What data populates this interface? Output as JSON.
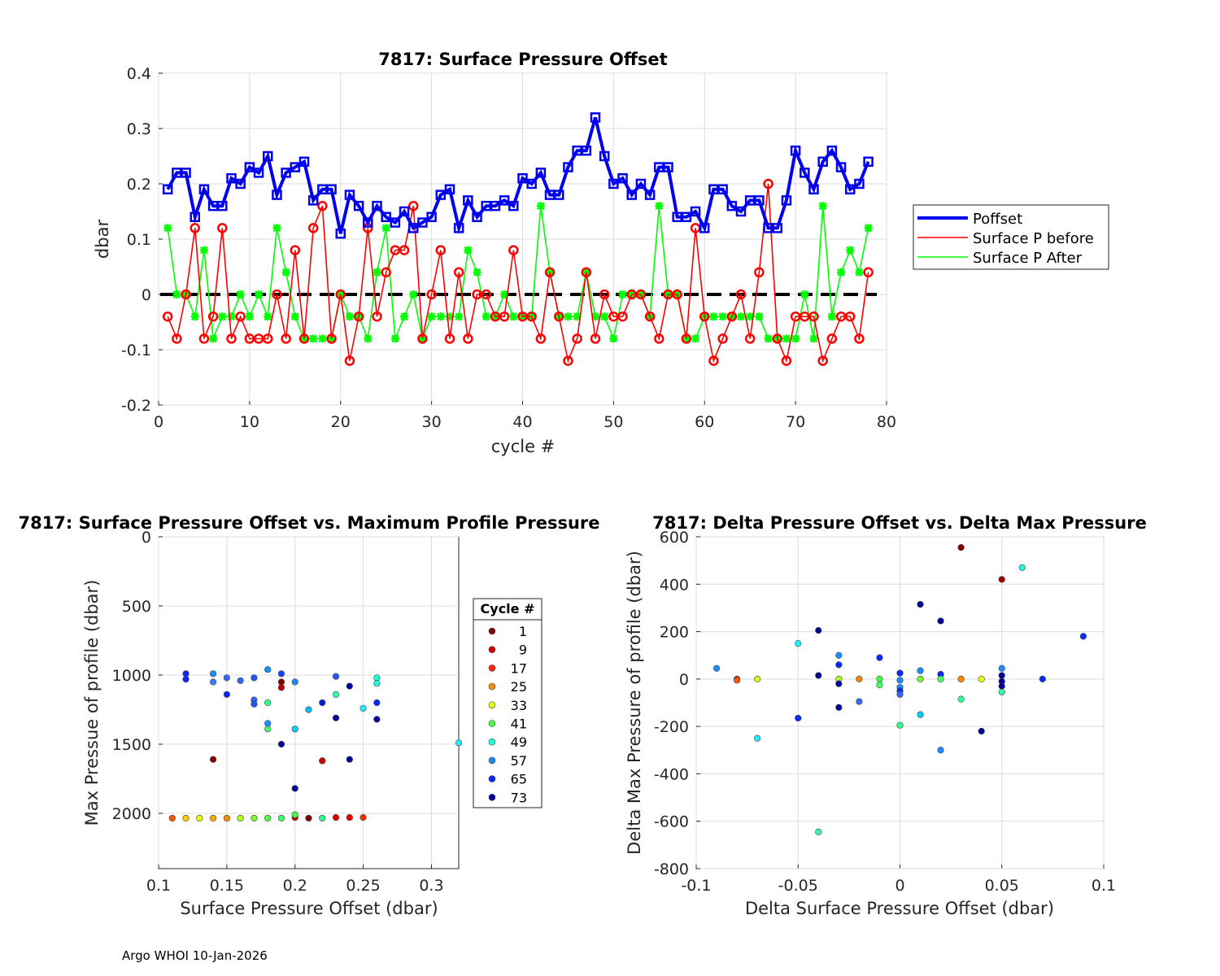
{
  "footer": "Argo WHOI 10-Jan-2026",
  "chart_data": [
    {
      "type": "line",
      "title": "7817: Surface Pressure Offset",
      "xlabel": "cycle #",
      "ylabel": "dbar",
      "xlim": [
        0,
        80
      ],
      "ylim": [
        -0.2,
        0.4
      ],
      "xticks": [
        0,
        10,
        20,
        30,
        40,
        50,
        60,
        70,
        80
      ],
      "yticks": [
        -0.2,
        -0.1,
        0,
        0.1,
        0.2,
        0.3,
        0.4
      ],
      "xtick_labels": [
        "0",
        "10",
        "20",
        "30",
        "40",
        "50",
        "60",
        "70",
        "80"
      ],
      "ytick_labels": [
        "-0.2",
        "-0.1",
        "0",
        "0.1",
        "0.2",
        "0.3",
        "0.4"
      ],
      "grid": true,
      "legend_position": "right-outside",
      "zero_line": 0,
      "x": [
        1,
        2,
        3,
        4,
        5,
        6,
        7,
        8,
        9,
        10,
        11,
        12,
        13,
        14,
        15,
        16,
        17,
        18,
        19,
        20,
        21,
        22,
        23,
        24,
        25,
        26,
        27,
        28,
        29,
        30,
        31,
        32,
        33,
        34,
        35,
        36,
        37,
        38,
        39,
        40,
        41,
        42,
        43,
        44,
        45,
        46,
        47,
        48,
        49,
        50,
        51,
        52,
        53,
        54,
        55,
        56,
        57,
        58,
        59,
        60,
        61,
        62,
        63,
        64,
        65,
        66,
        67,
        68,
        69,
        70,
        71,
        72,
        73,
        74,
        75,
        76,
        77,
        78
      ],
      "series": [
        {
          "name": "Poffset",
          "color": "#0000ee",
          "values": [
            0.19,
            0.22,
            0.22,
            0.14,
            0.19,
            0.16,
            0.16,
            0.21,
            0.2,
            0.23,
            0.22,
            0.25,
            0.18,
            0.22,
            0.23,
            0.24,
            0.17,
            0.19,
            0.19,
            0.11,
            0.18,
            0.16,
            0.13,
            0.16,
            0.14,
            0.13,
            0.15,
            0.12,
            0.13,
            0.14,
            0.18,
            0.19,
            0.12,
            0.17,
            0.14,
            0.16,
            0.16,
            0.17,
            0.16,
            0.21,
            0.2,
            0.22,
            0.18,
            0.18,
            0.23,
            0.26,
            0.26,
            0.32,
            0.25,
            0.2,
            0.21,
            0.18,
            0.2,
            0.18,
            0.23,
            0.23,
            0.14,
            0.14,
            0.15,
            0.12,
            0.19,
            0.19,
            0.16,
            0.15,
            0.17,
            0.17,
            0.12,
            0.12,
            0.17,
            0.26,
            0.22,
            0.19,
            0.24,
            0.26,
            0.23,
            0.19,
            0.2,
            0.24
          ]
        },
        {
          "name": "Surface P before",
          "color": "#ff0000",
          "values": [
            -0.04,
            -0.08,
            0,
            0.12,
            -0.08,
            -0.04,
            0.12,
            -0.08,
            -0.04,
            -0.08,
            -0.08,
            -0.08,
            0,
            -0.08,
            0.08,
            -0.08,
            0.12,
            0.16,
            -0.08,
            0,
            -0.12,
            -0.04,
            0.12,
            -0.04,
            0.04,
            0.08,
            0.08,
            0.16,
            -0.08,
            0,
            0.08,
            -0.08,
            0.04,
            -0.08,
            0,
            0,
            -0.04,
            -0.04,
            0.08,
            -0.04,
            -0.04,
            -0.08,
            0.04,
            -0.04,
            -0.12,
            -0.08,
            0.04,
            -0.08,
            0,
            -0.04,
            -0.04,
            0,
            0,
            -0.04,
            -0.08,
            0,
            0,
            -0.08,
            0.12,
            -0.04,
            -0.12,
            -0.08,
            -0.04,
            0,
            -0.08,
            0.04,
            0.2,
            -0.08,
            -0.12,
            -0.04,
            -0.04,
            -0.04,
            -0.12,
            -0.08,
            -0.04,
            -0.04,
            -0.08,
            0.04
          ]
        },
        {
          "name": "Surface P After",
          "color": "#00ff00",
          "values": [
            0.12,
            0,
            0,
            -0.04,
            0.08,
            -0.08,
            -0.04,
            -0.04,
            0,
            -0.04,
            0,
            -0.04,
            0.12,
            0.04,
            -0.04,
            -0.08,
            -0.08,
            -0.08,
            -0.08,
            0,
            -0.04,
            -0.04,
            -0.08,
            0.04,
            0.12,
            -0.08,
            -0.04,
            0,
            -0.08,
            -0.04,
            -0.04,
            -0.04,
            -0.04,
            0.08,
            0.04,
            -0.04,
            -0.04,
            0,
            -0.04,
            -0.04,
            -0.04,
            0.16,
            0.04,
            -0.04,
            -0.04,
            -0.04,
            0.04,
            -0.04,
            -0.04,
            -0.08,
            0,
            0,
            0,
            -0.04,
            0.16,
            0,
            0,
            -0.08,
            -0.08,
            -0.04,
            -0.04,
            -0.04,
            -0.04,
            -0.04,
            -0.04,
            -0.04,
            -0.08,
            -0.08,
            -0.08,
            -0.08,
            0,
            -0.08,
            0.16,
            -0.04,
            0.04,
            0.08,
            0.04,
            0.12
          ]
        }
      ]
    },
    {
      "type": "scatter",
      "title": "7817: Surface Pressure Offset vs. Maximum Profile Pressure",
      "xlabel": "Surface Pressure Offset (dbar)",
      "ylabel": "Max Pressue of profile (dbar)",
      "xlim": [
        0.1,
        0.32
      ],
      "ylim": [
        0,
        2400
      ],
      "y_reversed": true,
      "xticks": [
        0.1,
        0.15,
        0.2,
        0.25,
        0.3
      ],
      "yticks": [
        0,
        500,
        1000,
        1500,
        2000
      ],
      "xtick_labels": [
        "0.1",
        "0.15",
        "0.2",
        "0.25",
        "0.3"
      ],
      "ytick_labels": [
        "0",
        "500",
        "1000",
        "1500",
        "2000"
      ],
      "grid": true,
      "legend_title": "Cycle #",
      "legend_position": "right-outside",
      "legend_entries": [
        {
          "label": "1",
          "color": "#800000"
        },
        {
          "label": "9",
          "color": "#d00000"
        },
        {
          "label": "17",
          "color": "#ff2a00"
        },
        {
          "label": "25",
          "color": "#ff8800"
        },
        {
          "label": "33",
          "color": "#e8ff10"
        },
        {
          "label": "41",
          "color": "#44ff44"
        },
        {
          "label": "49",
          "color": "#20ffdd"
        },
        {
          "label": "57",
          "color": "#1a8cff"
        },
        {
          "label": "65",
          "color": "#0a28ff"
        },
        {
          "label": "73",
          "color": "#00009a"
        }
      ],
      "points": [
        [
          0.19,
          1050,
          "#800000"
        ],
        [
          0.14,
          1610,
          "#800000"
        ],
        [
          0.22,
          1620,
          "#800000"
        ],
        [
          0.21,
          2035,
          "#800000"
        ],
        [
          0.19,
          1090,
          "#c00000"
        ],
        [
          0.22,
          1620,
          "#d00000"
        ],
        [
          0.2,
          2030,
          "#d00000"
        ],
        [
          0.23,
          2030,
          "#e00000"
        ],
        [
          0.24,
          2030,
          "#e00000"
        ],
        [
          0.25,
          2030,
          "#ff2a00"
        ],
        [
          0.11,
          2035,
          "#ff5500"
        ],
        [
          0.15,
          2035,
          "#ff8800"
        ],
        [
          0.14,
          2035,
          "#ffaa00"
        ],
        [
          0.12,
          2035,
          "#ffcc00"
        ],
        [
          0.13,
          2035,
          "#e8ff10"
        ],
        [
          0.16,
          2035,
          "#aaff22"
        ],
        [
          0.17,
          2035,
          "#77ff33"
        ],
        [
          0.18,
          2035,
          "#55ff44"
        ],
        [
          0.19,
          2035,
          "#44ff66"
        ],
        [
          0.22,
          2035,
          "#33ff88"
        ],
        [
          0.2,
          2010,
          "#44ff44"
        ],
        [
          0.18,
          1390,
          "#44ff66"
        ],
        [
          0.18,
          1200,
          "#33ff99"
        ],
        [
          0.23,
          1140,
          "#33ffaa"
        ],
        [
          0.26,
          1020,
          "#20ffdd"
        ],
        [
          0.26,
          1060,
          "#20ffdd"
        ],
        [
          0.25,
          1240,
          "#20eeff"
        ],
        [
          0.32,
          1490,
          "#20eeff"
        ],
        [
          0.2,
          1390,
          "#00ccff"
        ],
        [
          0.21,
          1250,
          "#00bbff"
        ],
        [
          0.18,
          1350,
          "#1a8cff"
        ],
        [
          0.18,
          960,
          "#1a8cff"
        ],
        [
          0.2,
          1050,
          "#1a8cff"
        ],
        [
          0.14,
          990,
          "#1a8cff"
        ],
        [
          0.14,
          1050,
          "#3a7bff"
        ],
        [
          0.16,
          1040,
          "#3366ff"
        ],
        [
          0.15,
          1020,
          "#3366ff"
        ],
        [
          0.17,
          1180,
          "#3366ff"
        ],
        [
          0.17,
          1210,
          "#2255ff"
        ],
        [
          0.17,
          1020,
          "#2255ff"
        ],
        [
          0.23,
          1010,
          "#2255ff"
        ],
        [
          0.19,
          990,
          "#1144ff"
        ],
        [
          0.15,
          1140,
          "#0a28ff"
        ],
        [
          0.12,
          990,
          "#0a28ff"
        ],
        [
          0.12,
          1030,
          "#0a28ff"
        ],
        [
          0.26,
          1200,
          "#0a28ff"
        ],
        [
          0.22,
          1200,
          "#0020dd"
        ],
        [
          0.19,
          1500,
          "#00009a"
        ],
        [
          0.2,
          1820,
          "#00009a"
        ],
        [
          0.24,
          1610,
          "#00009a"
        ],
        [
          0.23,
          1310,
          "#00009a"
        ],
        [
          0.24,
          1080,
          "#00009a"
        ],
        [
          0.26,
          1320,
          "#00009a"
        ]
      ]
    },
    {
      "type": "scatter",
      "title": "7817: Delta Pressure Offset vs. Delta Max Pressure",
      "xlabel": "Delta Surface Pressure Offset (dbar)",
      "ylabel": "Delta Max Pressure of profile (dbar)",
      "xlim": [
        -0.1,
        0.1
      ],
      "ylim": [
        -800,
        600
      ],
      "xticks": [
        -0.1,
        -0.05,
        0,
        0.05,
        0.1
      ],
      "yticks": [
        -800,
        -600,
        -400,
        -200,
        0,
        200,
        400,
        600
      ],
      "xtick_labels": [
        "-0.1",
        "-0.05",
        "0",
        "0.05",
        "0.1"
      ],
      "ytick_labels": [
        "-800",
        "-600",
        "-400",
        "-200",
        "0",
        "200",
        "400",
        "600"
      ],
      "grid": true,
      "points": [
        [
          0.03,
          555,
          "#800000"
        ],
        [
          0.05,
          420,
          "#a00000"
        ],
        [
          0.06,
          470,
          "#20ffdd"
        ],
        [
          0.01,
          315,
          "#00009a"
        ],
        [
          0.02,
          245,
          "#00009a"
        ],
        [
          -0.04,
          205,
          "#00009a"
        ],
        [
          0.09,
          180,
          "#0a28ff"
        ],
        [
          -0.05,
          150,
          "#20eeff"
        ],
        [
          -0.03,
          100,
          "#1a8cff"
        ],
        [
          -0.01,
          90,
          "#0a28ff"
        ],
        [
          -0.03,
          60,
          "#0a28ff"
        ],
        [
          -0.09,
          45,
          "#1a8cff"
        ],
        [
          0.05,
          45,
          "#1a8cff"
        ],
        [
          0.01,
          35,
          "#1a8cff"
        ],
        [
          0,
          25,
          "#0a28ff"
        ],
        [
          0.02,
          20,
          "#0a28ff"
        ],
        [
          0.05,
          15,
          "#00009a"
        ],
        [
          -0.04,
          15,
          "#00009a"
        ],
        [
          -0.08,
          0,
          "#ff2a00"
        ],
        [
          -0.08,
          -5,
          "#ff5500"
        ],
        [
          -0.07,
          0,
          "#ccff22"
        ],
        [
          -0.03,
          0,
          "#aaff22"
        ],
        [
          -0.02,
          0,
          "#ff8800"
        ],
        [
          -0.01,
          0,
          "#44ff44"
        ],
        [
          0.01,
          0,
          "#77ff33"
        ],
        [
          0.02,
          0,
          "#44ff66"
        ],
        [
          0.03,
          0,
          "#ff8800"
        ],
        [
          0.04,
          0,
          "#e8ff10"
        ],
        [
          0.07,
          0,
          "#0a28ff"
        ],
        [
          0,
          -5,
          "#1a8cff"
        ],
        [
          0.05,
          -10,
          "#00009a"
        ],
        [
          -0.01,
          -25,
          "#44ff66"
        ],
        [
          -0.03,
          -20,
          "#00009a"
        ],
        [
          0.05,
          -30,
          "#00009a"
        ],
        [
          0,
          -35,
          "#1a8cff"
        ],
        [
          0,
          -50,
          "#0a28ff"
        ],
        [
          0.05,
          -55,
          "#33ffaa"
        ],
        [
          0,
          -65,
          "#3366ff"
        ],
        [
          0.03,
          -85,
          "#33ff99"
        ],
        [
          -0.02,
          -95,
          "#3366ff"
        ],
        [
          -0.03,
          -120,
          "#00009a"
        ],
        [
          0.01,
          -150,
          "#00ccff"
        ],
        [
          -0.05,
          -165,
          "#0a28ff"
        ],
        [
          0,
          -195,
          "#33ff88"
        ],
        [
          0.04,
          -220,
          "#00009a"
        ],
        [
          -0.07,
          -250,
          "#20eeff"
        ],
        [
          0.02,
          -300,
          "#1a8cff"
        ],
        [
          -0.04,
          -645,
          "#33ffaa"
        ]
      ]
    }
  ]
}
